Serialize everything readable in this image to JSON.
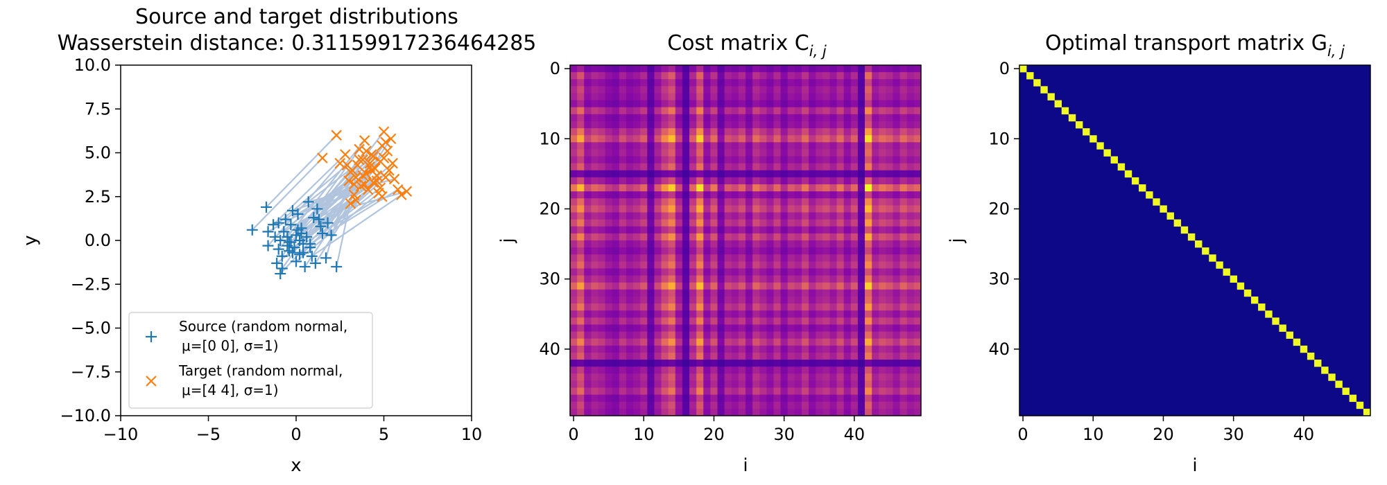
{
  "chart_data": [
    {
      "type": "scatter",
      "title": "Source and target distributions",
      "subtitle": "Wasserstein distance: 0.31159917236464285",
      "xlabel": "x",
      "ylabel": "y",
      "xlim": [
        -10,
        10
      ],
      "ylim": [
        -10,
        10
      ],
      "xticks": [
        "−10",
        "−5",
        "0",
        "5",
        "10"
      ],
      "yticks": [
        "10.0",
        "7.5",
        "5.0",
        "2.5",
        "0.0",
        "−2.5",
        "−5.0",
        "−7.5",
        "−10.0"
      ],
      "legend_position": "lower left",
      "colors": {
        "source": "#1f77b4",
        "target": "#ff7f0e",
        "lines": "#b0c4de"
      },
      "series": [
        {
          "name": "Source (random normal,",
          "name_line2": "μ=[0 0], σ=1)",
          "marker": "+",
          "x": [
            -2.5,
            -1.7,
            -1.6,
            -1.3,
            -1.2,
            -1.1,
            -1.0,
            -0.9,
            -0.9,
            -0.8,
            -0.8,
            -0.7,
            -0.6,
            -0.5,
            -0.5,
            -0.4,
            -0.3,
            -0.3,
            -0.2,
            -0.1,
            0.0,
            0.0,
            0.1,
            0.1,
            0.2,
            0.2,
            0.3,
            0.4,
            0.5,
            0.6,
            0.7,
            0.8,
            0.9,
            1.0,
            1.1,
            1.2,
            1.3,
            1.5,
            1.7,
            1.8,
            2.0,
            2.3,
            -1.0,
            0.3,
            -0.4,
            0.8,
            -1.6,
            0.4,
            1.4,
            -0.2
          ],
          "y": [
            0.6,
            1.9,
            -0.3,
            0.9,
            0.2,
            -1.3,
            -0.5,
            -1.9,
            0.0,
            -1.6,
            -0.9,
            0.5,
            1.2,
            0.2,
            -0.3,
            -0.6,
            0.9,
            -0.1,
            1.7,
            -0.4,
            0.3,
            -1.2,
            1.5,
            0.6,
            0.0,
            -0.8,
            0.4,
            -0.7,
            -1.5,
            0.2,
            2.2,
            -0.2,
            -0.9,
            1.3,
            -1.3,
            1.8,
            1.2,
            0.4,
            -1.0,
            1.0,
            0.3,
            -1.5,
            1.0,
            0.7,
            -0.1,
            -0.4,
            0.5,
            -0.2,
            0.8,
            -0.7
          ]
        },
        {
          "name": "Target (random normal,",
          "name_line2": "μ=[4 4], σ=1)",
          "marker": "x",
          "x": [
            1.5,
            2.3,
            2.5,
            2.8,
            3.0,
            3.1,
            3.2,
            3.3,
            3.4,
            3.5,
            3.6,
            3.7,
            3.8,
            3.9,
            4.0,
            4.1,
            4.2,
            4.3,
            4.4,
            4.5,
            4.6,
            4.7,
            4.8,
            4.9,
            5.0,
            5.1,
            5.2,
            5.3,
            5.4,
            5.5,
            5.6,
            5.8,
            6.0,
            6.3,
            3.4,
            3.9,
            4.4,
            4.8,
            3.1,
            5.1,
            4.2,
            3.6,
            2.9,
            4.0,
            4.6,
            5.0,
            3.3,
            4.9,
            3.8,
            4.3
          ],
          "y": [
            4.7,
            6.0,
            4.4,
            4.9,
            3.4,
            2.1,
            4.0,
            2.6,
            3.6,
            4.3,
            5.2,
            3.1,
            4.6,
            5.7,
            3.8,
            2.9,
            4.4,
            4.9,
            3.3,
            4.1,
            3.7,
            2.7,
            4.5,
            5.4,
            6.2,
            3.6,
            5.1,
            4.0,
            5.8,
            4.4,
            3.5,
            2.9,
            2.6,
            2.8,
            2.3,
            3.2,
            4.8,
            3.0,
            3.9,
            5.6,
            4.2,
            4.6,
            4.3,
            5.1,
            3.4,
            4.7,
            3.2,
            2.5,
            3.7,
            4.0
          ]
        }
      ]
    },
    {
      "type": "heatmap",
      "title": "Cost matrix C",
      "title_sub": "i, j",
      "xlabel": "i",
      "ylabel": "j",
      "size": 50,
      "colormap": "plasma",
      "xticks": [
        "0",
        "10",
        "20",
        "30",
        "40"
      ],
      "yticks": [
        "0",
        "10",
        "20",
        "30",
        "40"
      ],
      "row_weights": [
        0.35,
        0.6,
        0.45,
        0.55,
        0.5,
        0.4,
        0.7,
        0.45,
        0.5,
        0.75,
        0.95,
        0.55,
        0.6,
        0.5,
        0.65,
        0.2,
        0.55,
        1.0,
        0.45,
        0.7,
        0.85,
        0.6,
        0.75,
        0.5,
        0.8,
        0.55,
        0.45,
        0.6,
        0.7,
        0.5,
        0.65,
        0.9,
        0.55,
        0.6,
        0.75,
        0.5,
        0.7,
        0.45,
        0.6,
        0.8,
        0.55,
        0.65,
        0.15,
        0.5,
        0.6,
        0.55,
        0.7,
        0.45,
        0.55,
        0.5
      ],
      "col_weights": [
        0.6,
        0.8,
        0.45,
        0.55,
        0.5,
        0.4,
        0.35,
        0.5,
        0.4,
        0.45,
        0.55,
        0.2,
        0.5,
        0.7,
        0.85,
        0.45,
        0.15,
        0.55,
        0.9,
        0.4,
        0.6,
        0.25,
        0.5,
        0.45,
        0.55,
        0.35,
        0.6,
        0.5,
        0.4,
        0.55,
        0.35,
        0.5,
        0.45,
        0.6,
        0.4,
        0.5,
        0.55,
        0.45,
        0.6,
        0.4,
        0.55,
        0.15,
        0.95,
        0.5,
        0.6,
        0.55,
        0.45,
        0.6,
        0.5,
        0.55
      ]
    },
    {
      "type": "heatmap",
      "title": "Optimal transport matrix G",
      "title_sub": "i, j",
      "xlabel": "i",
      "ylabel": "j",
      "size": 50,
      "diagonal": true,
      "colors": {
        "background": "#0d0887",
        "diagonal": "#f0f921"
      },
      "xticks": [
        "0",
        "10",
        "20",
        "30",
        "40"
      ],
      "yticks": [
        "0",
        "10",
        "20",
        "30",
        "40"
      ]
    }
  ]
}
